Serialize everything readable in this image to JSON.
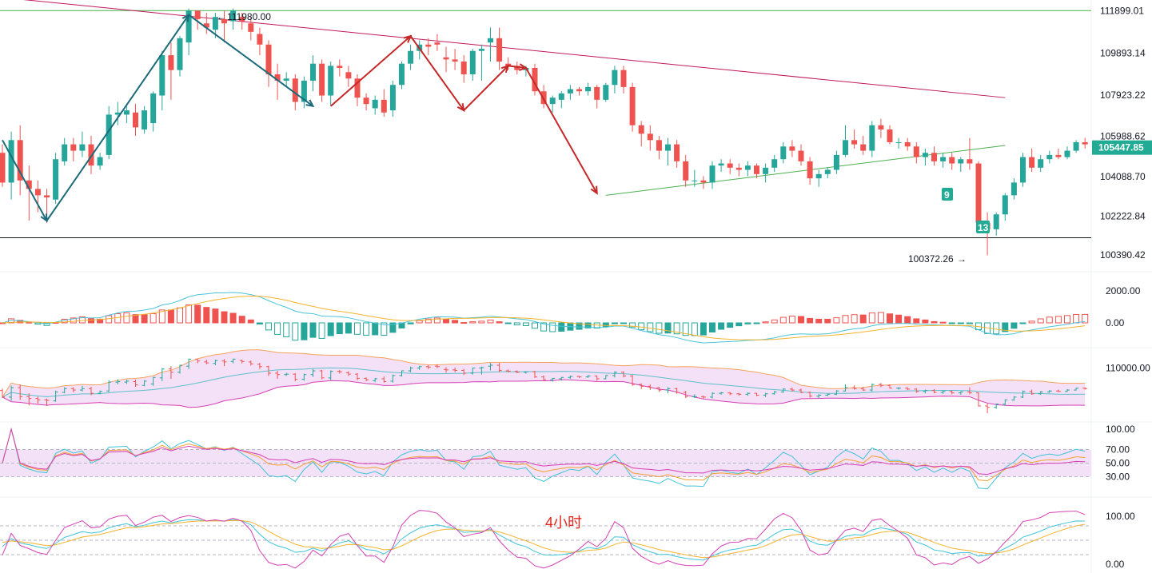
{
  "chart_data": {
    "type": "candlestick",
    "timeframe_label": "4小时",
    "colors": {
      "up": "#26a69a",
      "down": "#ef5350",
      "trend_red": "#c2185b",
      "trend_green": "#4caf50",
      "zigzag_blue": "#1b6b7a",
      "zigzag_red": "#c62828",
      "current_tag": "#22ab94"
    },
    "price_axis": {
      "min": 99600,
      "max": 112400,
      "ticks": [
        "111899.01",
        "109893.14",
        "107923.22",
        "105988.62",
        "104088.70",
        "102222.84",
        "100390.42"
      ],
      "current_price": "105447.85"
    },
    "annotations": {
      "high_label": "111980.00",
      "low_label": "100372.26",
      "td_badges": [
        "9",
        "13"
      ]
    },
    "horizontal_levels": [
      111899.01,
      101200
    ],
    "trendlines": [
      {
        "color": "red",
        "from": [
          -2,
          112600
        ],
        "to": [
          113,
          107800
        ]
      },
      {
        "color": "green",
        "from": [
          68,
          103200
        ],
        "to": [
          113,
          105550
        ]
      }
    ],
    "zigzag_blue": [
      [
        0,
        105800
      ],
      [
        5,
        102000
      ],
      [
        21,
        111700
      ],
      [
        35,
        107400
      ]
    ],
    "zigzag_red": [
      [
        37,
        107400
      ],
      [
        46,
        110700
      ],
      [
        52,
        107200
      ],
      [
        57,
        109300
      ],
      [
        59,
        109200
      ],
      [
        67,
        103300
      ]
    ],
    "ohlc": [
      [
        105200,
        105600,
        103600,
        103800
      ],
      [
        103800,
        106200,
        103000,
        105800
      ],
      [
        105800,
        106500,
        103200,
        103900
      ],
      [
        103900,
        104600,
        102000,
        103500
      ],
      [
        103500,
        103900,
        102400,
        103200
      ],
      [
        103200,
        103500,
        101900,
        103100
      ],
      [
        103000,
        105200,
        102800,
        104900
      ],
      [
        104800,
        105900,
        104600,
        105600
      ],
      [
        105600,
        105900,
        104800,
        105300
      ],
      [
        105300,
        106200,
        105000,
        105600
      ],
      [
        105600,
        106000,
        104200,
        104600
      ],
      [
        104600,
        105200,
        104400,
        105000
      ],
      [
        105100,
        107400,
        104900,
        107000
      ],
      [
        107000,
        107600,
        106500,
        107100
      ],
      [
        107000,
        107500,
        106600,
        107200
      ],
      [
        107100,
        107500,
        106000,
        106400
      ],
      [
        106300,
        107400,
        106100,
        107200
      ],
      [
        106600,
        108100,
        106200,
        108000
      ],
      [
        107900,
        110000,
        107200,
        109800
      ],
      [
        109800,
        110400,
        107700,
        109100
      ],
      [
        109100,
        110700,
        108800,
        110600
      ],
      [
        110400,
        112000,
        109800,
        111900
      ],
      [
        111900,
        111900,
        111000,
        111500
      ],
      [
        111300,
        111800,
        110800,
        111100
      ],
      [
        111000,
        111800,
        110600,
        111600
      ],
      [
        111500,
        111900,
        110400,
        111300
      ],
      [
        111400,
        112000,
        111000,
        111900
      ],
      [
        111600,
        111800,
        111000,
        111400
      ],
      [
        111300,
        111600,
        110500,
        110900
      ],
      [
        110800,
        111100,
        109800,
        110300
      ],
      [
        110300,
        110500,
        108300,
        108900
      ],
      [
        108900,
        109400,
        107700,
        108600
      ],
      [
        108600,
        109000,
        108300,
        108700
      ],
      [
        108700,
        108900,
        107200,
        107600
      ],
      [
        107600,
        108800,
        107300,
        108600
      ],
      [
        108600,
        109800,
        108100,
        109400
      ],
      [
        109400,
        109600,
        107600,
        107900
      ],
      [
        107900,
        109500,
        107400,
        109300
      ],
      [
        109300,
        109600,
        108800,
        109200
      ],
      [
        109000,
        109300,
        108300,
        108700
      ],
      [
        108700,
        108900,
        107400,
        107800
      ],
      [
        107800,
        108000,
        107200,
        107500
      ],
      [
        107300,
        107900,
        107000,
        107700
      ],
      [
        107700,
        108200,
        106900,
        107100
      ],
      [
        107200,
        108600,
        106900,
        108400
      ],
      [
        108400,
        109500,
        108200,
        109400
      ],
      [
        109400,
        110300,
        109100,
        110000
      ],
      [
        110000,
        110500,
        109600,
        110300
      ],
      [
        110300,
        110600,
        109800,
        110200
      ],
      [
        110400,
        110800,
        110000,
        110300
      ],
      [
        109700,
        110200,
        109000,
        109600
      ],
      [
        109600,
        110100,
        109100,
        109500
      ],
      [
        109500,
        109800,
        108500,
        108900
      ],
      [
        108900,
        110100,
        108600,
        110000
      ],
      [
        110000,
        110300,
        108600,
        110100
      ],
      [
        110400,
        111100,
        109500,
        110600
      ],
      [
        110600,
        111100,
        109100,
        109500
      ],
      [
        109400,
        109700,
        109100,
        109300
      ],
      [
        109300,
        109500,
        108900,
        109100
      ],
      [
        109100,
        109300,
        108800,
        109200
      ],
      [
        109200,
        109400,
        107900,
        108100
      ],
      [
        108100,
        108400,
        107300,
        107500
      ],
      [
        107500,
        107900,
        107100,
        107800
      ],
      [
        107700,
        108100,
        107300,
        108000
      ],
      [
        108000,
        108400,
        107700,
        108200
      ],
      [
        108200,
        108300,
        107900,
        108100
      ],
      [
        108100,
        108500,
        107900,
        108300
      ],
      [
        108300,
        108400,
        107300,
        107700
      ],
      [
        107700,
        108500,
        107600,
        108400
      ],
      [
        108400,
        109300,
        108000,
        109100
      ],
      [
        109100,
        109300,
        108000,
        108300
      ],
      [
        108300,
        108500,
        106200,
        106500
      ],
      [
        106500,
        106700,
        105500,
        106100
      ],
      [
        106100,
        106500,
        105300,
        105800
      ],
      [
        105800,
        106000,
        104900,
        105300
      ],
      [
        105300,
        105900,
        104600,
        105600
      ],
      [
        105600,
        105800,
        104500,
        104800
      ],
      [
        104800,
        105100,
        103600,
        103900
      ],
      [
        103900,
        104400,
        103600,
        103900
      ],
      [
        103900,
        104100,
        103500,
        103800
      ],
      [
        103800,
        104800,
        103500,
        104600
      ],
      [
        104600,
        104900,
        104300,
        104700
      ],
      [
        104700,
        104900,
        104200,
        104500
      ],
      [
        104500,
        104700,
        104100,
        104400
      ],
      [
        104400,
        104800,
        104100,
        104600
      ],
      [
        104600,
        104700,
        104000,
        104200
      ],
      [
        104200,
        104700,
        103800,
        104500
      ],
      [
        104500,
        105100,
        104300,
        104900
      ],
      [
        104900,
        105700,
        104700,
        105500
      ],
      [
        105500,
        105800,
        105000,
        105300
      ],
      [
        105300,
        105600,
        104600,
        104800
      ],
      [
        104800,
        105000,
        103700,
        104000
      ],
      [
        104000,
        104400,
        103600,
        104200
      ],
      [
        104200,
        104500,
        104000,
        104400
      ],
      [
        104400,
        105300,
        104200,
        105100
      ],
      [
        105100,
        106500,
        105000,
        105800
      ],
      [
        105800,
        106300,
        105400,
        105600
      ],
      [
        105600,
        106000,
        105100,
        105300
      ],
      [
        105300,
        106700,
        105000,
        106500
      ],
      [
        106500,
        106800,
        105900,
        106300
      ],
      [
        106300,
        106500,
        105600,
        105700
      ],
      [
        105700,
        105900,
        105400,
        105700
      ],
      [
        105700,
        105900,
        105300,
        105500
      ],
      [
        105500,
        105700,
        104700,
        105000
      ],
      [
        105000,
        105400,
        104600,
        105200
      ],
      [
        105200,
        105500,
        104600,
        104800
      ],
      [
        104800,
        105200,
        104500,
        105000
      ],
      [
        105000,
        105200,
        104400,
        104700
      ],
      [
        104700,
        105000,
        104300,
        104900
      ],
      [
        104900,
        105900,
        104400,
        104700
      ],
      [
        104700,
        104800,
        101800,
        101900
      ],
      [
        101900,
        102400,
        100372,
        101600
      ],
      [
        101600,
        102400,
        101300,
        102300
      ],
      [
        102300,
        103300,
        102000,
        103200
      ],
      [
        103200,
        104000,
        103000,
        103800
      ],
      [
        103800,
        105200,
        103600,
        105000
      ],
      [
        105000,
        105400,
        104300,
        104500
      ],
      [
        104500,
        105100,
        104300,
        104900
      ],
      [
        104900,
        105300,
        104700,
        105100
      ],
      [
        105100,
        105400,
        104900,
        105000
      ],
      [
        105000,
        105500,
        104900,
        105300
      ],
      [
        105300,
        105800,
        105200,
        105700
      ],
      [
        105700,
        105900,
        105400,
        105600
      ]
    ],
    "macd_panel": {
      "ticks": [
        "2000.00",
        "0.00"
      ]
    },
    "boll_panel": {
      "ticks": [
        "110000.00"
      ]
    },
    "rsi_panel": {
      "ticks": [
        "100.00",
        "70.00",
        "50.00",
        "30.00"
      ]
    },
    "kdj_panel": {
      "ticks": [
        "100.00",
        "0.00"
      ]
    }
  }
}
